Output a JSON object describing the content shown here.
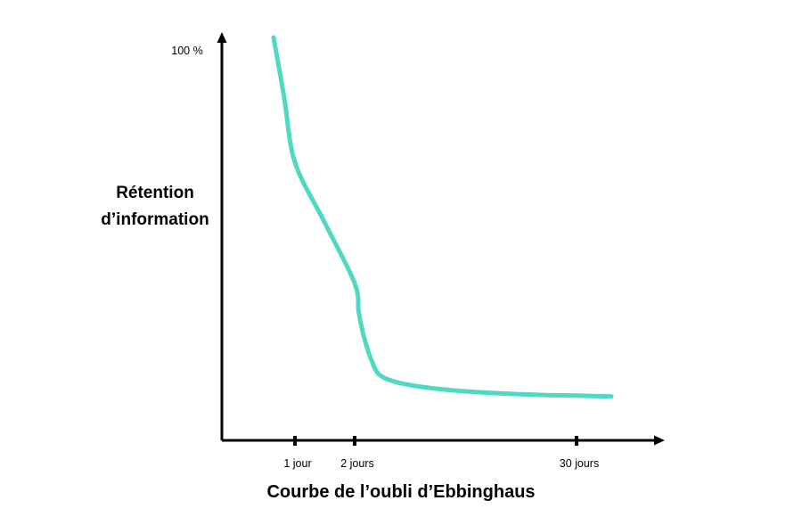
{
  "chart_data": {
    "type": "line",
    "title": "Courbe de l’oubli d’Ebbinghaus",
    "ylabel_lines": [
      "Rétention",
      "d’information"
    ],
    "xlabel": "",
    "y_ticks": [
      {
        "value": 100,
        "label": "100 %"
      }
    ],
    "x_ticks": [
      {
        "value": 1,
        "label": "1 jour"
      },
      {
        "value": 2,
        "label": "2 jours"
      },
      {
        "value": 30,
        "label": "30 jours"
      }
    ],
    "series": [
      {
        "color": "#4fd8c2",
        "points": [
          {
            "x": 0,
            "y": 100
          },
          {
            "x": 0.5,
            "y": 85
          },
          {
            "x": 1,
            "y": 69
          },
          {
            "x": 1.5,
            "y": 54
          },
          {
            "x": 2,
            "y": 39
          },
          {
            "x": 2.5,
            "y": 32
          },
          {
            "x": 3,
            "y": 27
          },
          {
            "x": 3.5,
            "y": 23.5
          },
          {
            "x": 4,
            "y": 20.5
          },
          {
            "x": 5,
            "y": 16.5
          },
          {
            "x": 7,
            "y": 14.6
          },
          {
            "x": 10,
            "y": 13.4
          },
          {
            "x": 15,
            "y": 12.3
          },
          {
            "x": 20,
            "y": 11.7
          },
          {
            "x": 25,
            "y": 11.3
          },
          {
            "x": 30,
            "y": 11.1
          },
          {
            "x": 31,
            "y": 10.9
          }
        ]
      }
    ],
    "axis_color": "#000000",
    "grid": false
  }
}
